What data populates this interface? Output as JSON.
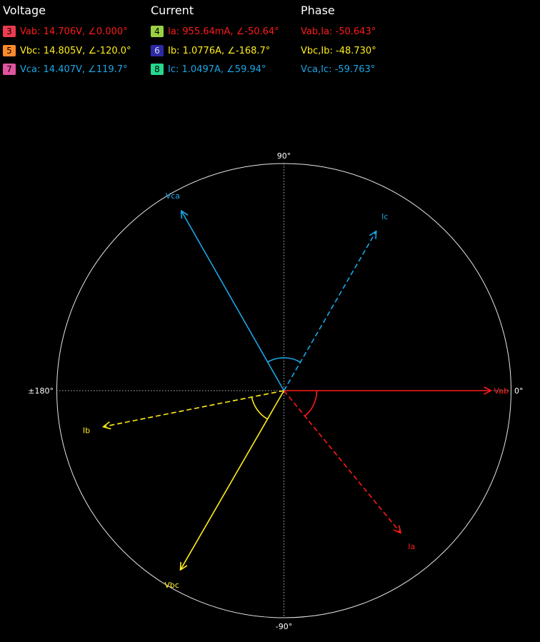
{
  "headers": {
    "voltage": "Voltage",
    "current": "Current",
    "phase": "Phase"
  },
  "voltage_rows": [
    {
      "channel": "3",
      "badge_color": "#ec3b4f",
      "text": "Vab: 14.706V, ∠0.000°",
      "color": "#ff1a1a"
    },
    {
      "channel": "5",
      "badge_color": "#ff8a2a",
      "text": "Vbc: 14.805V, ∠-120.0°",
      "color": "#ffee1a"
    },
    {
      "channel": "7",
      "badge_color": "#e0559d",
      "text": "Vca: 14.407V, ∠119.7°",
      "color": "#1aa6e6"
    }
  ],
  "current_rows": [
    {
      "channel": "4",
      "badge_color": "#9ad043",
      "text": "Ia: 955.64mA, ∠-50.64°",
      "color": "#ff1a1a",
      "dark": false
    },
    {
      "channel": "6",
      "badge_color": "#2c2aa8",
      "text": "Ib: 1.0776A, ∠-168.7°",
      "color": "#ffee1a",
      "dark": true
    },
    {
      "channel": "8",
      "badge_color": "#26d88f",
      "text": "Ic: 1.0497A, ∠59.94°",
      "color": "#1aa6e6",
      "dark": false
    }
  ],
  "phase_rows": [
    {
      "text": "Vab,Ia: -50.643°",
      "color": "#ff1a1a"
    },
    {
      "text": "Vbc,Ib: -48.730°",
      "color": "#ffee1a"
    },
    {
      "text": "Vca,Ic: -59.763°",
      "color": "#1aa6e6"
    }
  ],
  "chart_data": {
    "type": "phasor",
    "axis_labels": {
      "deg0": "0°",
      "deg90": "90°",
      "deg180": "±180°",
      "degm90": "-90°"
    },
    "grid": true,
    "phasors": [
      {
        "name": "Vab",
        "angle": 0.0,
        "magnitude": 14.706,
        "style": "solid",
        "color": "#ff1a1a"
      },
      {
        "name": "Vbc",
        "angle": -120.0,
        "magnitude": 14.805,
        "style": "solid",
        "color": "#ffee1a"
      },
      {
        "name": "Vca",
        "angle": 119.7,
        "magnitude": 14.407,
        "style": "solid",
        "color": "#1aa6e6"
      },
      {
        "name": "Ia",
        "angle": -50.64,
        "magnitude": 0.95564,
        "style": "dashed",
        "color": "#ff1a1a"
      },
      {
        "name": "Ib",
        "angle": -168.7,
        "magnitude": 1.0776,
        "style": "dashed",
        "color": "#ffee1a"
      },
      {
        "name": "Ic",
        "angle": 59.94,
        "magnitude": 1.0497,
        "style": "dashed",
        "color": "#1aa6e6"
      }
    ],
    "phase_arcs": [
      {
        "from": "Vab",
        "to": "Ia",
        "color": "#ff1a1a"
      },
      {
        "from": "Vbc",
        "to": "Ib",
        "color": "#ffee1a"
      },
      {
        "from": "Vca",
        "to": "Ic",
        "color": "#1aa6e6"
      }
    ]
  }
}
